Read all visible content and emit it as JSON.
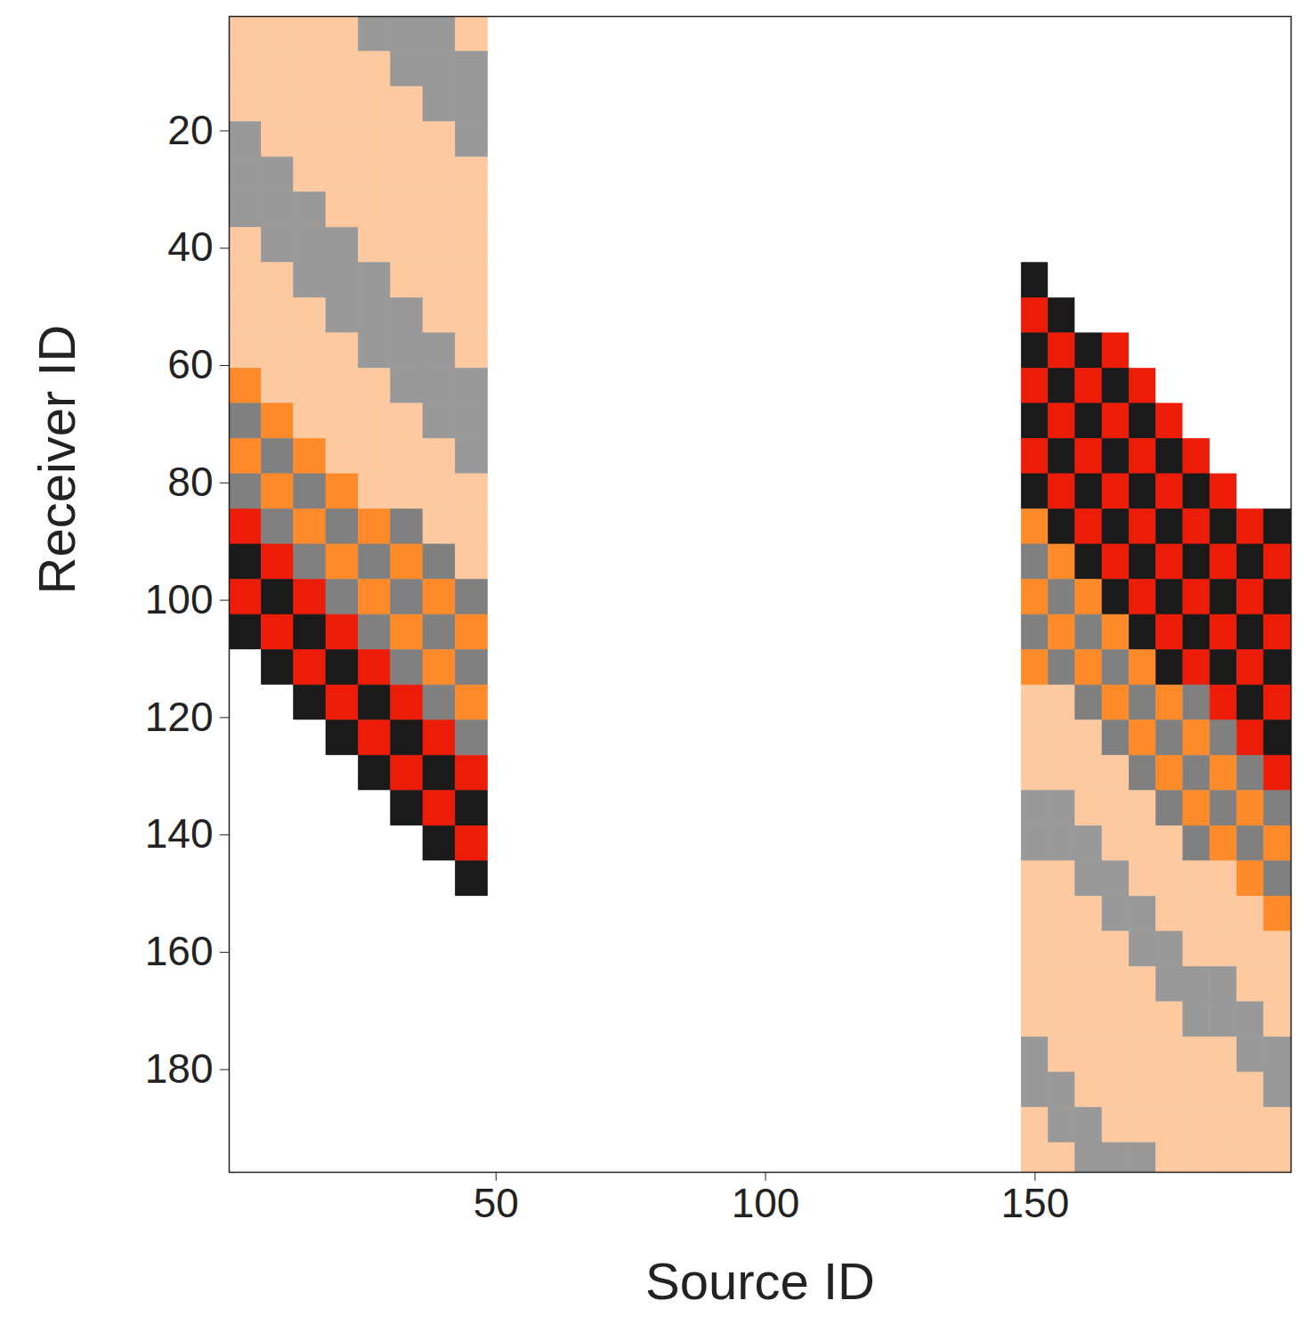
{
  "chart_data": {
    "type": "heatmap",
    "x_label": "Source ID",
    "y_label": "Receiver ID",
    "xlim": [
      0.5,
      197.5
    ],
    "ylim": [
      197.5,
      0.5
    ],
    "xticks": [
      50,
      100,
      150
    ],
    "yticks": [
      20,
      40,
      60,
      80,
      100,
      120,
      140,
      160,
      180
    ],
    "color_range": [
      -1,
      1
    ],
    "source_edges": [
      0.5,
      6.5,
      12.5,
      18.5,
      24.5,
      30.5,
      36.5,
      42.5,
      48.5,
      147.5,
      152.5,
      157.5,
      162.5,
      167.5,
      172.5,
      177.5,
      182.5,
      187.5,
      192.5,
      197.5
    ],
    "receiver_edges": [
      0.5,
      6.5,
      12.5,
      18.5,
      24.5,
      30.5,
      36.5,
      42.5,
      48.5,
      54.5,
      60.5,
      66.5,
      72.5,
      78.5,
      84.5,
      90.5,
      96.5,
      102.5,
      108.5,
      114.5,
      120.5,
      126.5,
      132.5,
      138.5,
      144.5,
      150.5,
      156.5,
      162.5,
      168.5,
      174.5,
      180.5,
      186.5,
      192.5,
      197.5
    ],
    "cells": [
      [
        0.25,
        0.25,
        0.25,
        0.25,
        -0.4,
        -0.4,
        -0.4,
        0.25,
        null,
        0,
        0,
        0,
        0,
        0,
        0,
        0,
        0,
        0,
        0
      ],
      [
        0.25,
        0.25,
        0.25,
        0.25,
        0.25,
        -0.4,
        -0.4,
        -0.4,
        null,
        0,
        0,
        0,
        0,
        0,
        0,
        0,
        0,
        0,
        0
      ],
      [
        0.25,
        0.25,
        0.25,
        0.25,
        0.25,
        0.25,
        -0.4,
        -0.4,
        null,
        0,
        0,
        0,
        0,
        0,
        0,
        0,
        0,
        0,
        0
      ],
      [
        -0.4,
        0.25,
        0.25,
        0.25,
        0.25,
        0.25,
        0.25,
        -0.4,
        null,
        0,
        0,
        0,
        0,
        0,
        0,
        0,
        0,
        0,
        0
      ],
      [
        -0.4,
        -0.4,
        0.25,
        0.25,
        0.25,
        0.25,
        0.25,
        0.25,
        null,
        0,
        0,
        0,
        0,
        0,
        0,
        0,
        0,
        0,
        0
      ],
      [
        -0.4,
        -0.4,
        -0.4,
        0.25,
        0.25,
        0.25,
        0.25,
        0.25,
        null,
        0,
        0,
        0,
        0,
        0,
        0,
        0,
        0,
        0,
        0
      ],
      [
        0.25,
        -0.4,
        -0.4,
        -0.4,
        0.25,
        0.25,
        0.25,
        0.25,
        null,
        0,
        0,
        0,
        0,
        0,
        0,
        0,
        0,
        0,
        0
      ],
      [
        0.25,
        0.25,
        -0.4,
        -0.4,
        -0.4,
        0.25,
        0.25,
        0.25,
        null,
        -0.9,
        0,
        0,
        0,
        0,
        0,
        0,
        0,
        0,
        0
      ],
      [
        0.25,
        0.25,
        0.25,
        -0.4,
        -0.4,
        -0.4,
        0.25,
        0.25,
        null,
        0.9,
        -0.9,
        0,
        0,
        0,
        0,
        0,
        0,
        0,
        0
      ],
      [
        0.25,
        0.25,
        0.25,
        0.25,
        -0.4,
        -0.4,
        -0.4,
        0.25,
        null,
        -0.9,
        0.9,
        -0.9,
        0.9,
        0,
        0,
        0,
        0,
        0,
        0
      ],
      [
        0.5,
        0.25,
        0.25,
        0.25,
        0.25,
        -0.4,
        -0.4,
        -0.4,
        null,
        0.9,
        -0.9,
        0.9,
        -0.9,
        0.9,
        0,
        0,
        0,
        0,
        0
      ],
      [
        -0.5,
        0.5,
        0.25,
        0.25,
        0.25,
        0.25,
        -0.4,
        -0.4,
        null,
        -0.9,
        0.9,
        -0.9,
        0.9,
        -0.9,
        0.9,
        0,
        0,
        0,
        0
      ],
      [
        0.5,
        -0.5,
        0.5,
        0.25,
        0.25,
        0.25,
        0.25,
        -0.4,
        null,
        0.9,
        -0.9,
        0.9,
        -0.9,
        0.9,
        -0.9,
        0.9,
        0,
        0,
        0
      ],
      [
        -0.5,
        0.5,
        -0.5,
        0.5,
        0.25,
        0.25,
        0.25,
        0.25,
        null,
        -0.9,
        0.9,
        -0.9,
        0.9,
        -0.9,
        0.9,
        -0.9,
        0.9,
        0,
        0
      ],
      [
        0.9,
        -0.5,
        0.5,
        -0.5,
        0.5,
        -0.5,
        0.25,
        0.25,
        null,
        0.5,
        -0.9,
        0.9,
        -0.9,
        0.9,
        -0.9,
        0.9,
        -0.9,
        0.9,
        -0.9
      ],
      [
        -0.9,
        0.9,
        -0.5,
        0.5,
        -0.5,
        0.5,
        -0.5,
        0.25,
        null,
        -0.5,
        0.5,
        -0.9,
        0.9,
        -0.9,
        0.9,
        -0.9,
        0.9,
        -0.9,
        0.9
      ],
      [
        0.9,
        -0.9,
        0.9,
        -0.5,
        0.5,
        -0.5,
        0.5,
        -0.5,
        null,
        0.5,
        -0.5,
        0.5,
        -0.9,
        0.9,
        -0.9,
        0.9,
        -0.9,
        0.9,
        -0.9
      ],
      [
        -0.9,
        0.9,
        -0.9,
        0.9,
        -0.5,
        0.5,
        -0.5,
        0.5,
        null,
        -0.5,
        0.5,
        -0.5,
        0.5,
        -0.9,
        0.9,
        -0.9,
        0.9,
        -0.9,
        0.9
      ],
      [
        0,
        -0.9,
        0.9,
        -0.9,
        0.9,
        -0.5,
        0.5,
        -0.5,
        null,
        0.5,
        -0.5,
        0.5,
        -0.5,
        0.5,
        -0.9,
        0.9,
        -0.9,
        0.9,
        -0.9
      ],
      [
        0,
        0,
        -0.9,
        0.9,
        -0.9,
        0.9,
        -0.5,
        0.5,
        null,
        0.25,
        0.25,
        -0.5,
        0.5,
        -0.5,
        0.5,
        -0.5,
        0.9,
        -0.9,
        0.9
      ],
      [
        0,
        0,
        0,
        -0.9,
        0.9,
        -0.9,
        0.9,
        -0.5,
        null,
        0.25,
        0.25,
        0.25,
        -0.5,
        0.5,
        -0.5,
        0.5,
        -0.5,
        0.9,
        -0.9
      ],
      [
        0,
        0,
        0,
        0,
        -0.9,
        0.9,
        -0.9,
        0.9,
        null,
        0.25,
        0.25,
        0.25,
        0.25,
        -0.5,
        0.5,
        -0.5,
        0.5,
        -0.5,
        0.9
      ],
      [
        0,
        0,
        0,
        0,
        0,
        -0.9,
        0.9,
        -0.9,
        null,
        -0.4,
        -0.4,
        0.25,
        0.25,
        0.25,
        -0.5,
        0.5,
        -0.5,
        0.5,
        -0.5
      ],
      [
        0,
        0,
        0,
        0,
        0,
        0,
        -0.9,
        0.9,
        null,
        -0.4,
        -0.4,
        -0.4,
        0.25,
        0.25,
        0.25,
        -0.5,
        0.5,
        -0.5,
        0.5
      ],
      [
        0,
        0,
        0,
        0,
        0,
        0,
        0,
        -0.9,
        null,
        0.25,
        0.25,
        -0.4,
        -0.4,
        0.25,
        0.25,
        0.25,
        0.25,
        0.5,
        -0.5
      ],
      [
        0,
        0,
        0,
        0,
        0,
        0,
        0,
        0,
        null,
        0.25,
        0.25,
        0.25,
        -0.4,
        -0.4,
        0.25,
        0.25,
        0.25,
        0.25,
        0.5
      ],
      [
        0,
        0,
        0,
        0,
        0,
        0,
        0,
        0,
        null,
        0.25,
        0.25,
        0.25,
        0.25,
        -0.4,
        -0.4,
        0.25,
        0.25,
        0.25,
        0.25
      ],
      [
        0,
        0,
        0,
        0,
        0,
        0,
        0,
        0,
        null,
        0.25,
        0.25,
        0.25,
        0.25,
        0.25,
        -0.4,
        -0.4,
        -0.4,
        0.25,
        0.25
      ],
      [
        0,
        0,
        0,
        0,
        0,
        0,
        0,
        0,
        null,
        0.25,
        0.25,
        0.25,
        0.25,
        0.25,
        0.25,
        -0.4,
        -0.4,
        -0.4,
        0.25
      ],
      [
        0,
        0,
        0,
        0,
        0,
        0,
        0,
        0,
        null,
        -0.4,
        0.25,
        0.25,
        0.25,
        0.25,
        0.25,
        0.25,
        0.25,
        -0.4,
        -0.4
      ],
      [
        0,
        0,
        0,
        0,
        0,
        0,
        0,
        0,
        null,
        -0.4,
        -0.4,
        0.25,
        0.25,
        0.25,
        0.25,
        0.25,
        0.25,
        0.25,
        -0.4
      ],
      [
        0,
        0,
        0,
        0,
        0,
        0,
        0,
        0,
        null,
        0.25,
        -0.4,
        -0.4,
        0.25,
        0.25,
        0.25,
        0.25,
        0.25,
        0.25,
        0.25
      ],
      [
        0,
        0,
        0,
        0,
        0,
        0,
        0,
        0,
        null,
        0.25,
        0.25,
        -0.4,
        -0.4,
        -0.4,
        0.25,
        0.25,
        0.25,
        0.25,
        0.25
      ]
    ]
  }
}
